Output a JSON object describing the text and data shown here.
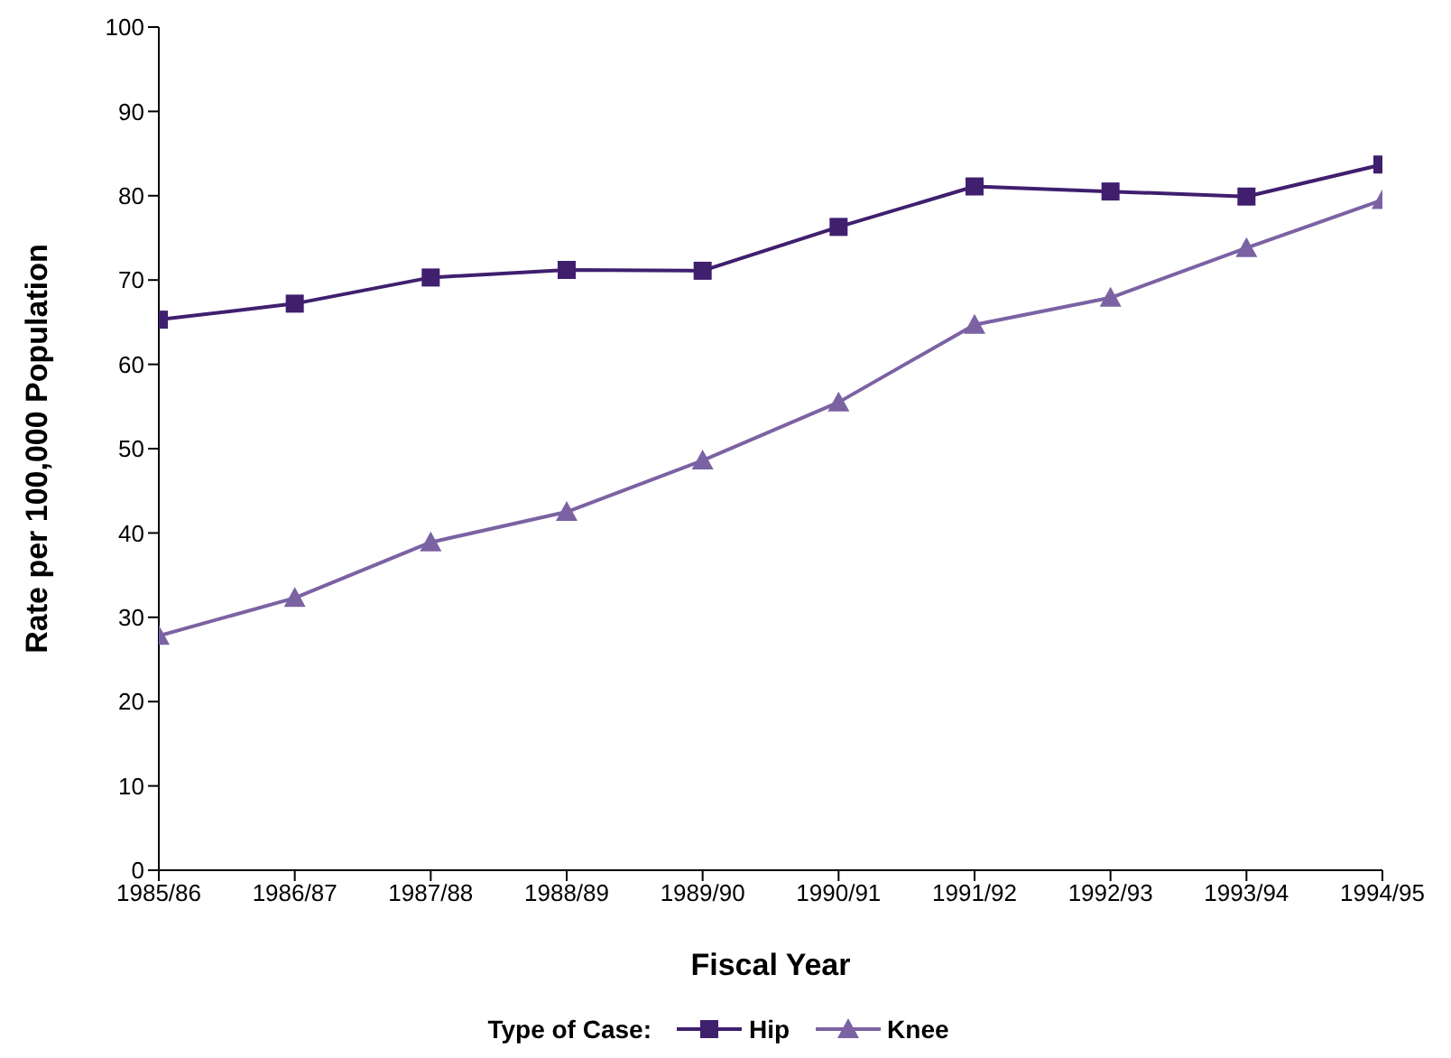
{
  "chart_data": {
    "type": "line",
    "xlabel": "Fiscal Year",
    "ylabel": "Rate per 100,000 Population",
    "legend_title": "Type of Case:",
    "legend": "bottom",
    "grid": false,
    "categories": [
      "1985/86",
      "1986/87",
      "1987/88",
      "1988/89",
      "1989/90",
      "1990/91",
      "1991/92",
      "1992/93",
      "1993/94",
      "1994/95"
    ],
    "ylim": [
      0,
      100
    ],
    "yticks": [
      0,
      10,
      20,
      30,
      40,
      50,
      60,
      70,
      80,
      90,
      100
    ],
    "series": [
      {
        "name": "Hip",
        "color": "#3f1f6e",
        "marker": "square",
        "values": [
          65.3,
          67.2,
          70.3,
          71.2,
          71.1,
          76.3,
          81.1,
          80.5,
          79.9,
          83.7
        ]
      },
      {
        "name": "Knee",
        "color": "#7b62a3",
        "marker": "triangle",
        "values": [
          27.8,
          32.3,
          38.9,
          42.5,
          48.6,
          55.5,
          64.7,
          67.9,
          73.8,
          79.5
        ]
      }
    ]
  }
}
